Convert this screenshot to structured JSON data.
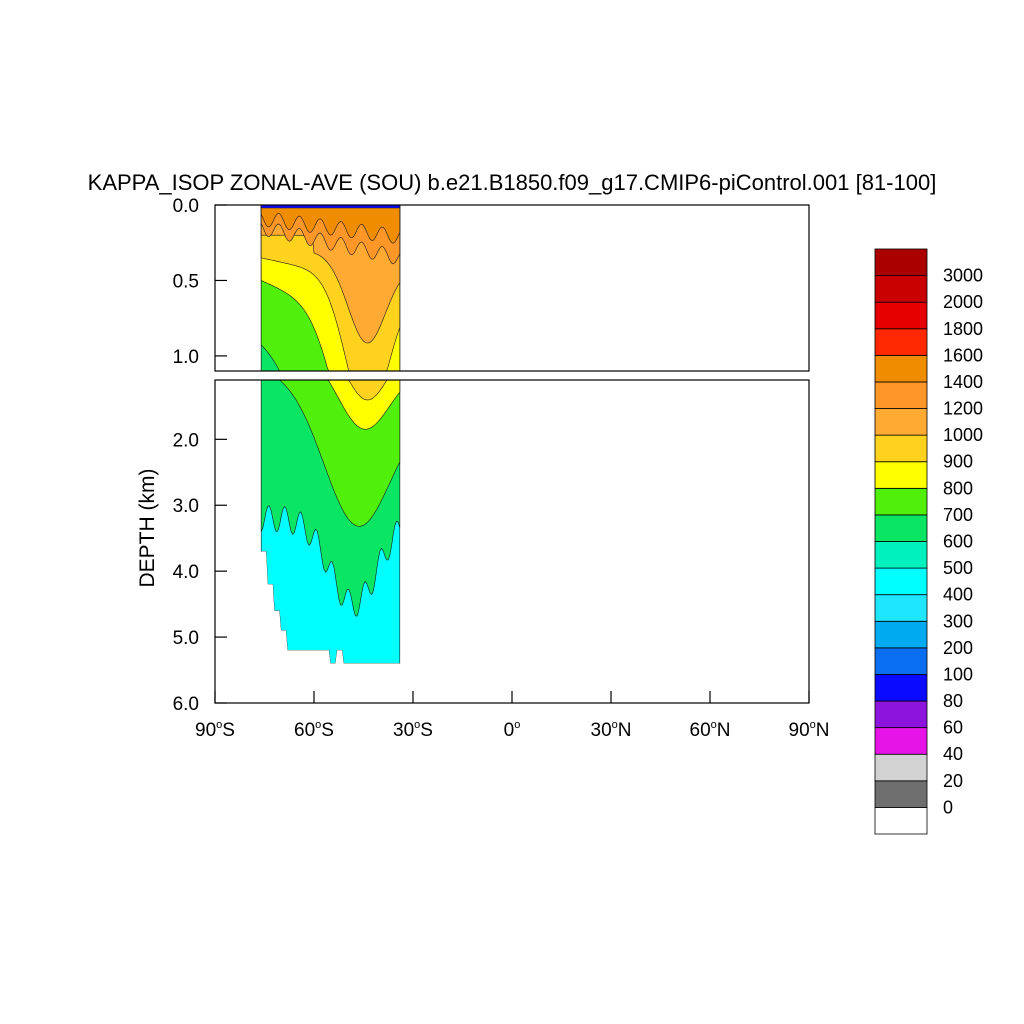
{
  "chart_data": {
    "type": "heatmap",
    "title": "KAPPA_ISOP ZONAL-AVE (SOU) b.e21.B1850.f09_g17.CMIP6-piControl.001 [81-100]",
    "ylabel": "DEPTH (km)",
    "xlabel": "",
    "x_range": [
      -90,
      90
    ],
    "x_ticks": [
      {
        "value": -90,
        "num": "90",
        "hemi": "S"
      },
      {
        "value": -60,
        "num": "60",
        "hemi": "S"
      },
      {
        "value": -30,
        "num": "30",
        "hemi": "S"
      },
      {
        "value": 0,
        "num": "0",
        "hemi": ""
      },
      {
        "value": 30,
        "num": "30",
        "hemi": "N"
      },
      {
        "value": 60,
        "num": "60",
        "hemi": "N"
      },
      {
        "value": 90,
        "num": "90",
        "hemi": "N"
      }
    ],
    "upper_panel": {
      "ylim": [
        0.0,
        1.1
      ],
      "y_ticks": [
        {
          "value": 0.0,
          "label": "0.0"
        },
        {
          "value": 0.5,
          "label": "0.5"
        },
        {
          "value": 1.0,
          "label": "1.0"
        }
      ]
    },
    "lower_panel": {
      "ylim": [
        1.1,
        6.0
      ],
      "y_ticks": [
        {
          "value": 2.0,
          "label": "2.0"
        },
        {
          "value": 3.0,
          "label": "3.0"
        },
        {
          "value": 4.0,
          "label": "4.0"
        },
        {
          "value": 5.0,
          "label": "5.0"
        },
        {
          "value": 6.0,
          "label": "6.0"
        }
      ]
    },
    "colorbar": {
      "levels": [
        "0",
        "20",
        "40",
        "60",
        "80",
        "100",
        "200",
        "300",
        "400",
        "500",
        "600",
        "700",
        "800",
        "900",
        "1000",
        "1200",
        "1400",
        "1600",
        "1800",
        "2000",
        "3000"
      ],
      "colors": [
        "#ffffff",
        "#6e6e6e",
        "#d2d2d2",
        "#e614e6",
        "#8c14dc",
        "#0a0aff",
        "#0a6ef0",
        "#00aaf0",
        "#1ee6ff",
        "#00ffff",
        "#00f0be",
        "#0ae664",
        "#50f00a",
        "#ffff00",
        "#ffd21e",
        "#ffaa32",
        "#ff9628",
        "#f08c00",
        "#ff2800",
        "#e60000",
        "#c80000",
        "#aa0000"
      ]
    },
    "field": {
      "lat_range": [
        -76,
        -34
      ],
      "bottom_depth_steps": [
        {
          "lat": -76,
          "depth": 3.7
        },
        {
          "lat": -74,
          "depth": 4.2
        },
        {
          "lat": -72,
          "depth": 4.6
        },
        {
          "lat": -70,
          "depth": 4.9
        },
        {
          "lat": -68,
          "depth": 5.2
        },
        {
          "lat": -55,
          "depth": 5.4
        },
        {
          "lat": -53,
          "depth": 5.2
        },
        {
          "lat": -51,
          "depth": 5.4
        },
        {
          "lat": -34,
          "depth": 5.4
        }
      ],
      "bands_upper_cm2_per_s": [
        {
          "value": 80,
          "depth": 0.02
        },
        {
          "value": 1400,
          "depth": 0.15
        },
        {
          "value": 1200,
          "depth": 0.25
        },
        {
          "value": 1000,
          "depth": 0.6
        },
        {
          "value": 900,
          "depth": 1.0
        },
        {
          "value": 800,
          "depth": 1.5
        },
        {
          "value": 700,
          "depth": 2.8
        },
        {
          "value": 600,
          "depth": 4.3
        },
        {
          "value": 400,
          "depth": 5.4
        }
      ]
    }
  }
}
